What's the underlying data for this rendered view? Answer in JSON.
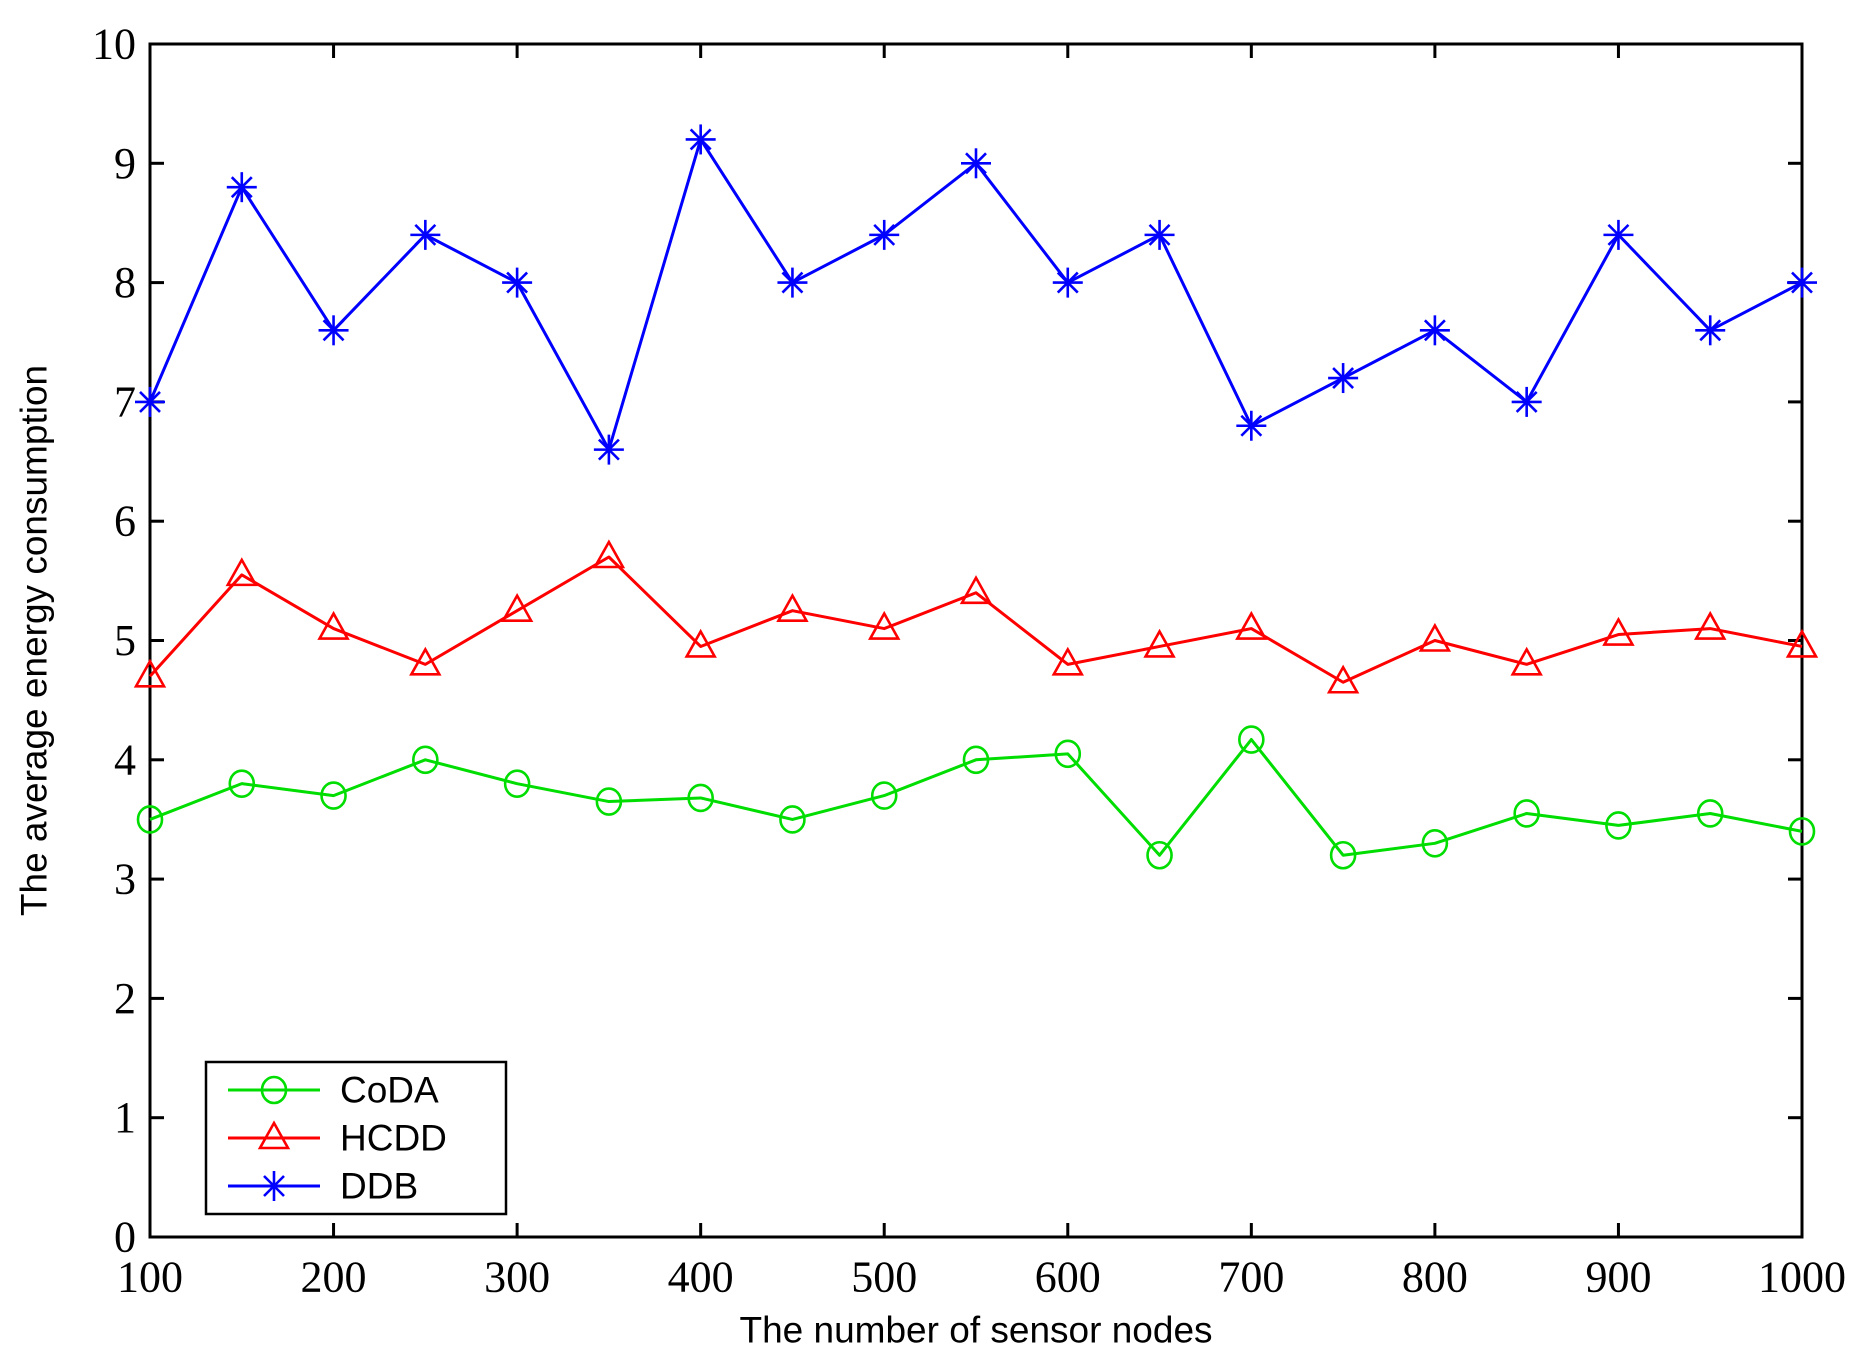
{
  "figure": {
    "background": "#ffffff",
    "axis_color": "#000000"
  },
  "chart_data": {
    "type": "line",
    "title": "",
    "xlabel": "The number of sensor nodes",
    "ylabel": "The average energy consumption",
    "xlim": [
      100,
      1000
    ],
    "ylim": [
      0,
      10
    ],
    "x_ticks": [
      100,
      200,
      300,
      400,
      500,
      600,
      700,
      800,
      900,
      1000
    ],
    "y_ticks": [
      0,
      1,
      2,
      3,
      4,
      5,
      6,
      7,
      8,
      9,
      10
    ],
    "grid": false,
    "legend_position": "bottom-left",
    "x": [
      100,
      150,
      200,
      250,
      300,
      350,
      400,
      450,
      500,
      550,
      600,
      650,
      700,
      750,
      800,
      850,
      900,
      950,
      1000
    ],
    "series": [
      {
        "name": "CoDA",
        "color": "#00dd00",
        "marker": "circle",
        "values": [
          3.5,
          3.8,
          3.7,
          4.0,
          3.8,
          3.65,
          3.68,
          3.5,
          3.7,
          4.0,
          4.05,
          3.2,
          4.17,
          3.2,
          3.3,
          3.55,
          3.45,
          3.55,
          3.4
        ]
      },
      {
        "name": "HCDD",
        "color": "#ff0000",
        "marker": "triangle-up",
        "values": [
          4.7,
          5.55,
          5.1,
          4.8,
          5.25,
          5.7,
          4.95,
          5.25,
          5.1,
          5.4,
          4.8,
          4.95,
          5.1,
          4.65,
          5.0,
          4.8,
          5.05,
          5.1,
          4.95
        ]
      },
      {
        "name": "DDB",
        "color": "#0000ff",
        "marker": "asterisk",
        "values": [
          7.0,
          8.8,
          7.6,
          8.4,
          8.0,
          6.6,
          9.2,
          8.0,
          8.4,
          9.0,
          8.0,
          8.4,
          6.8,
          7.2,
          7.6,
          7.0,
          8.4,
          7.6,
          8.0
        ]
      }
    ]
  }
}
